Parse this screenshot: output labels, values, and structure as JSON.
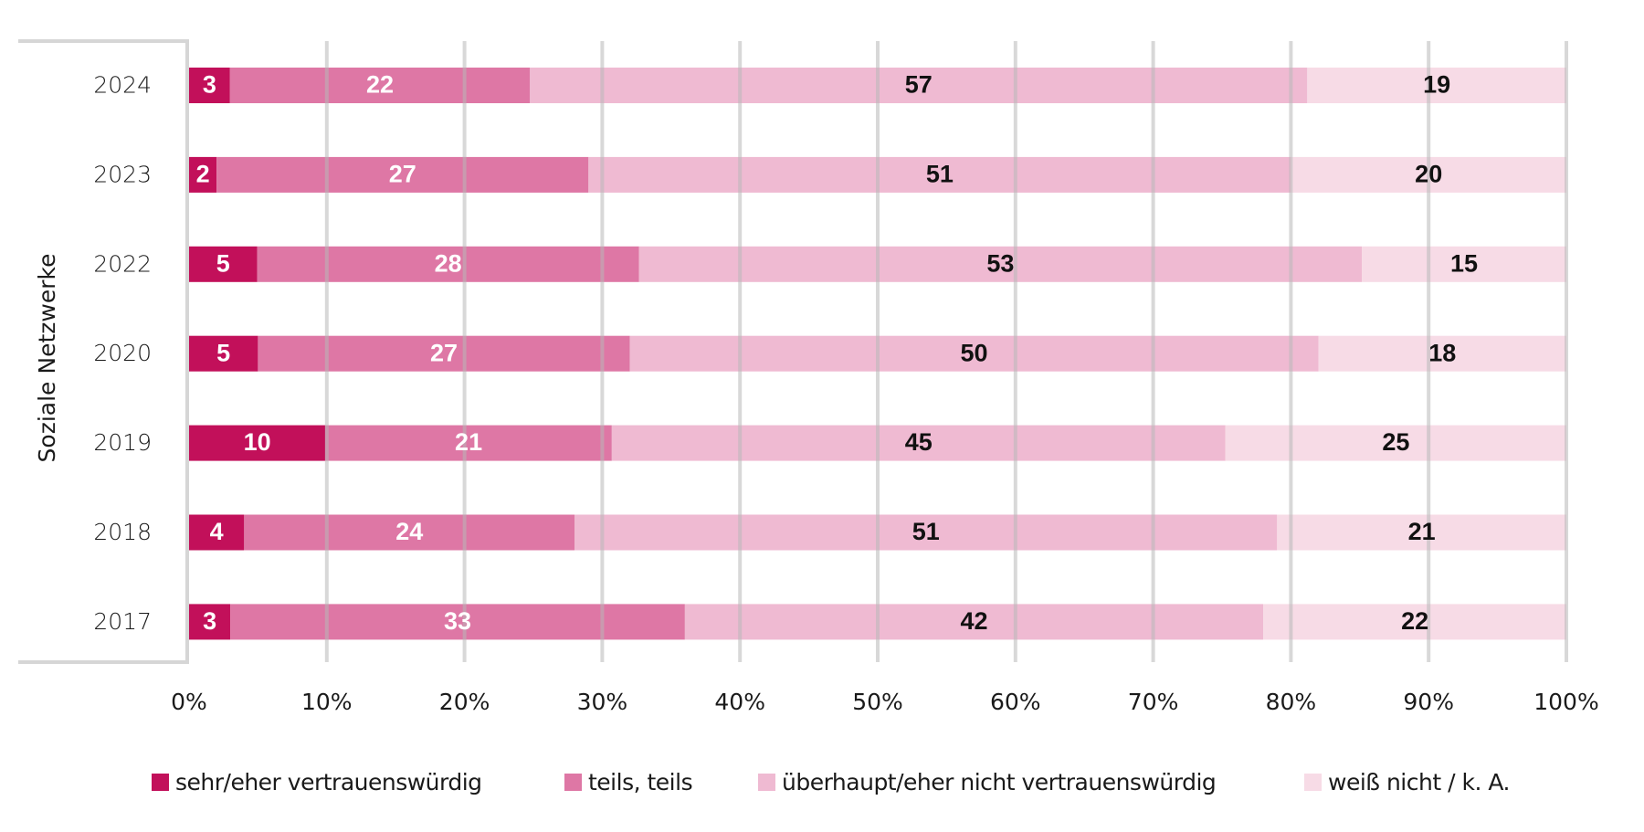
{
  "chart_data": {
    "type": "bar",
    "orientation": "horizontal",
    "stacked": "100%",
    "title": "",
    "ylabel": "Soziale Netzwerke",
    "xlabel": "",
    "xlim": [
      0,
      100
    ],
    "grid": true,
    "categories": [
      "2024",
      "2023",
      "2022",
      "2020",
      "2019",
      "2018",
      "2017"
    ],
    "x_ticks": [
      "0%",
      "10%",
      "20%",
      "30%",
      "40%",
      "50%",
      "60%",
      "70%",
      "80%",
      "90%",
      "100%"
    ],
    "legend_position": "bottom",
    "series": [
      {
        "name": "sehr/eher vertrauenswürdig",
        "color": "#C2105A",
        "label_color": "#ffffff",
        "values": [
          3,
          2,
          5,
          5,
          10,
          4,
          3
        ]
      },
      {
        "name": "teils, teils",
        "color": "#DE77A5",
        "label_color": "#ffffff",
        "values": [
          22,
          27,
          28,
          27,
          21,
          24,
          33
        ]
      },
      {
        "name": "überhaupt/eher nicht vertrauenswürdig",
        "color": "#EFBAD2",
        "label_color": "#111111",
        "values": [
          57,
          51,
          53,
          50,
          45,
          51,
          42
        ]
      },
      {
        "name": "weiß nicht / k. A.",
        "color": "#F7DBE6",
        "label_color": "#111111",
        "values": [
          19,
          20,
          15,
          18,
          25,
          21,
          22
        ]
      }
    ]
  }
}
